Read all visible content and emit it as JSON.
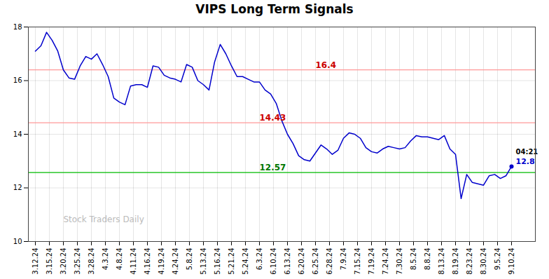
{
  "chart_data": {
    "type": "line",
    "title": "VIPS Long Term Signals",
    "watermark": "Stock Traders Daily",
    "x": [
      0,
      0.4,
      0.8,
      1.2,
      1.6,
      2,
      2.4,
      2.8,
      3.2,
      3.6,
      4,
      4.4,
      4.8,
      5.2,
      5.6,
      6,
      6.4,
      6.8,
      7.2,
      7.6,
      8,
      8.4,
      8.8,
      9.2,
      9.6,
      10,
      10.4,
      10.8,
      11.2,
      11.6,
      12,
      12.4,
      12.8,
      13.2,
      13.6,
      14,
      14.4,
      14.8,
      15.2,
      15.6,
      16,
      16.4,
      16.8,
      17.2,
      17.6,
      18,
      18.4,
      18.8,
      19.2,
      19.6,
      20,
      20.4,
      20.8,
      21.2,
      21.6,
      22,
      22.4,
      22.8,
      23.2,
      23.6,
      24,
      24.4,
      24.8,
      25.2,
      25.6,
      26,
      26.4,
      26.8,
      27.2,
      27.6,
      28,
      28.4,
      28.8,
      29.2,
      29.6,
      30,
      30.4,
      30.8,
      31.2,
      31.6,
      32,
      32.4,
      32.8,
      33.2,
      33.6,
      34
    ],
    "series": [
      {
        "color": "#0000cc",
        "marker": "last",
        "values": [
          17.1,
          17.3,
          17.8,
          17.5,
          17.1,
          16.4,
          16.1,
          16.05,
          16.55,
          16.9,
          16.8,
          17.0,
          16.6,
          16.15,
          15.35,
          15.2,
          15.1,
          15.8,
          15.85,
          15.85,
          15.75,
          16.55,
          16.5,
          16.2,
          16.1,
          16.05,
          15.95,
          16.6,
          16.5,
          16.0,
          15.85,
          15.65,
          16.7,
          17.35,
          17.0,
          16.55,
          16.15,
          16.15,
          16.05,
          15.95,
          15.95,
          15.65,
          15.5,
          15.15,
          14.5,
          14.0,
          13.65,
          13.2,
          13.05,
          13.0,
          13.3,
          13.6,
          13.45,
          13.25,
          13.4,
          13.85,
          14.05,
          14.0,
          13.85,
          13.5,
          13.35,
          13.3,
          13.45,
          13.55,
          13.5,
          13.45,
          13.5,
          13.75,
          13.95,
          13.9,
          13.9,
          13.85,
          13.8,
          13.95,
          13.45,
          13.25,
          11.6,
          12.5,
          12.2,
          12.15,
          12.1,
          12.45,
          12.5,
          12.35,
          12.45,
          12.8
        ]
      }
    ],
    "hlines": [
      {
        "value": 12.57,
        "color": "#00bb00",
        "label": "12.57",
        "label_color": "#007700",
        "label_x": 16
      },
      {
        "value": 16.4,
        "color": "#ff9999",
        "label": "16.4",
        "label_color": "#cc0000",
        "label_x": 20
      },
      {
        "value": 14.43,
        "color": "#ff9999",
        "label": "14.43",
        "label_color": "#cc0000",
        "label_x": 16
      }
    ],
    "annotations": [
      {
        "text": "04:21",
        "x": 34,
        "y": 12.8,
        "color": "#000000"
      },
      {
        "text": "12.8",
        "x": 34,
        "y": 12.8,
        "color": "#0000cc"
      }
    ],
    "xlim": [
      -0.5,
      35.7
    ],
    "xticks": [
      {
        "value": 0,
        "label": "3.12.24"
      },
      {
        "value": 1,
        "label": "3.15.24"
      },
      {
        "value": 2,
        "label": "3.20.24"
      },
      {
        "value": 3,
        "label": "3.25.24"
      },
      {
        "value": 4,
        "label": "3.28.24"
      },
      {
        "value": 5,
        "label": "4.3.24"
      },
      {
        "value": 6,
        "label": "4.8.24"
      },
      {
        "value": 7,
        "label": "4.11.24"
      },
      {
        "value": 8,
        "label": "4.16.24"
      },
      {
        "value": 9,
        "label": "4.19.24"
      },
      {
        "value": 10,
        "label": "4.24.24"
      },
      {
        "value": 11,
        "label": "5.8.24"
      },
      {
        "value": 12,
        "label": "5.13.24"
      },
      {
        "value": 13,
        "label": "5.16.24"
      },
      {
        "value": 14,
        "label": "5.21.24"
      },
      {
        "value": 15,
        "label": "5.24.24"
      },
      {
        "value": 16,
        "label": "6.3.24"
      },
      {
        "value": 17,
        "label": "6.10.24"
      },
      {
        "value": 18,
        "label": "6.13.24"
      },
      {
        "value": 19,
        "label": "6.20.24"
      },
      {
        "value": 20,
        "label": "6.25.24"
      },
      {
        "value": 21,
        "label": "6.28.24"
      },
      {
        "value": 22,
        "label": "7.9.24"
      },
      {
        "value": 23,
        "label": "7.15.24"
      },
      {
        "value": 24,
        "label": "7.19.24"
      },
      {
        "value": 25,
        "label": "7.24.24"
      },
      {
        "value": 26,
        "label": "7.30.24"
      },
      {
        "value": 27,
        "label": "8.5.24"
      },
      {
        "value": 28,
        "label": "8.8.24"
      },
      {
        "value": 29,
        "label": "8.13.24"
      },
      {
        "value": 30,
        "label": "8.19.24"
      },
      {
        "value": 31,
        "label": "8.23.24"
      },
      {
        "value": 32,
        "label": "8.30.24"
      },
      {
        "value": 33,
        "label": "9.5.24"
      },
      {
        "value": 34,
        "label": "9.10.24"
      }
    ],
    "ylim": [
      10,
      18
    ],
    "yticks": [
      10,
      12,
      14,
      16,
      18
    ],
    "grid": true
  }
}
